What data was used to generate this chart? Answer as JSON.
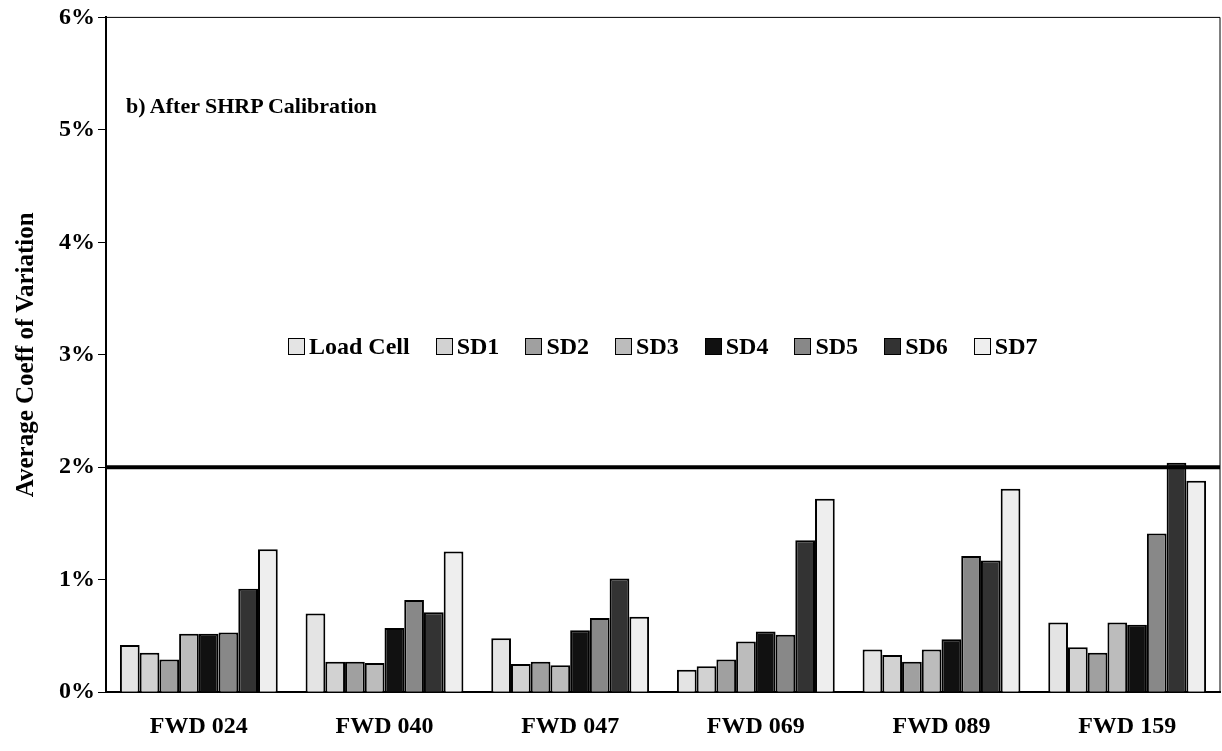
{
  "chart_data": {
    "type": "bar",
    "ylabel": "Average Coeff of Variation",
    "annotations": [
      "b) After SHRP Calibration"
    ],
    "categories": [
      "FWD 024",
      "FWD 040",
      "FWD 047",
      "FWD 069",
      "FWD 089",
      "FWD 159"
    ],
    "series": [
      {
        "name": "Load Cell",
        "color": "#e4e4e4",
        "values": [
          0.42,
          0.7,
          0.48,
          0.2,
          0.38,
          0.62
        ]
      },
      {
        "name": "SD1",
        "color": "#d2d2d2",
        "values": [
          0.35,
          0.27,
          0.25,
          0.23,
          0.33,
          0.4
        ]
      },
      {
        "name": "SD2",
        "color": "#a0a0a0",
        "values": [
          0.29,
          0.27,
          0.27,
          0.29,
          0.27,
          0.35
        ]
      },
      {
        "name": "SD3",
        "color": "#bcbcbc",
        "values": [
          0.52,
          0.26,
          0.24,
          0.45,
          0.38,
          0.62
        ]
      },
      {
        "name": "SD4",
        "color": "#111111",
        "values": [
          0.52,
          0.57,
          0.55,
          0.54,
          0.47,
          0.6
        ]
      },
      {
        "name": "SD5",
        "color": "#888888",
        "values": [
          0.53,
          0.82,
          0.66,
          0.51,
          1.21,
          1.41
        ]
      },
      {
        "name": "SD6",
        "color": "#333333",
        "values": [
          0.92,
          0.71,
          1.01,
          1.35,
          1.17,
          2.04
        ]
      },
      {
        "name": "SD7",
        "color": "#eeeeee",
        "values": [
          1.27,
          1.25,
          0.67,
          1.72,
          1.81,
          1.88
        ]
      }
    ],
    "ylim": [
      0,
      6
    ],
    "yticks": [
      {
        "value": 0,
        "label": "0%"
      },
      {
        "value": 1,
        "label": "1%"
      },
      {
        "value": 2,
        "label": "2%"
      },
      {
        "value": 3,
        "label": "3%"
      },
      {
        "value": 4,
        "label": "4%"
      },
      {
        "value": 5,
        "label": "5%"
      },
      {
        "value": 6,
        "label": "6%"
      }
    ],
    "ref_lines": [
      {
        "axis": "y",
        "value": 2,
        "color": "#000000"
      }
    ],
    "legend": "center",
    "grid": false
  }
}
